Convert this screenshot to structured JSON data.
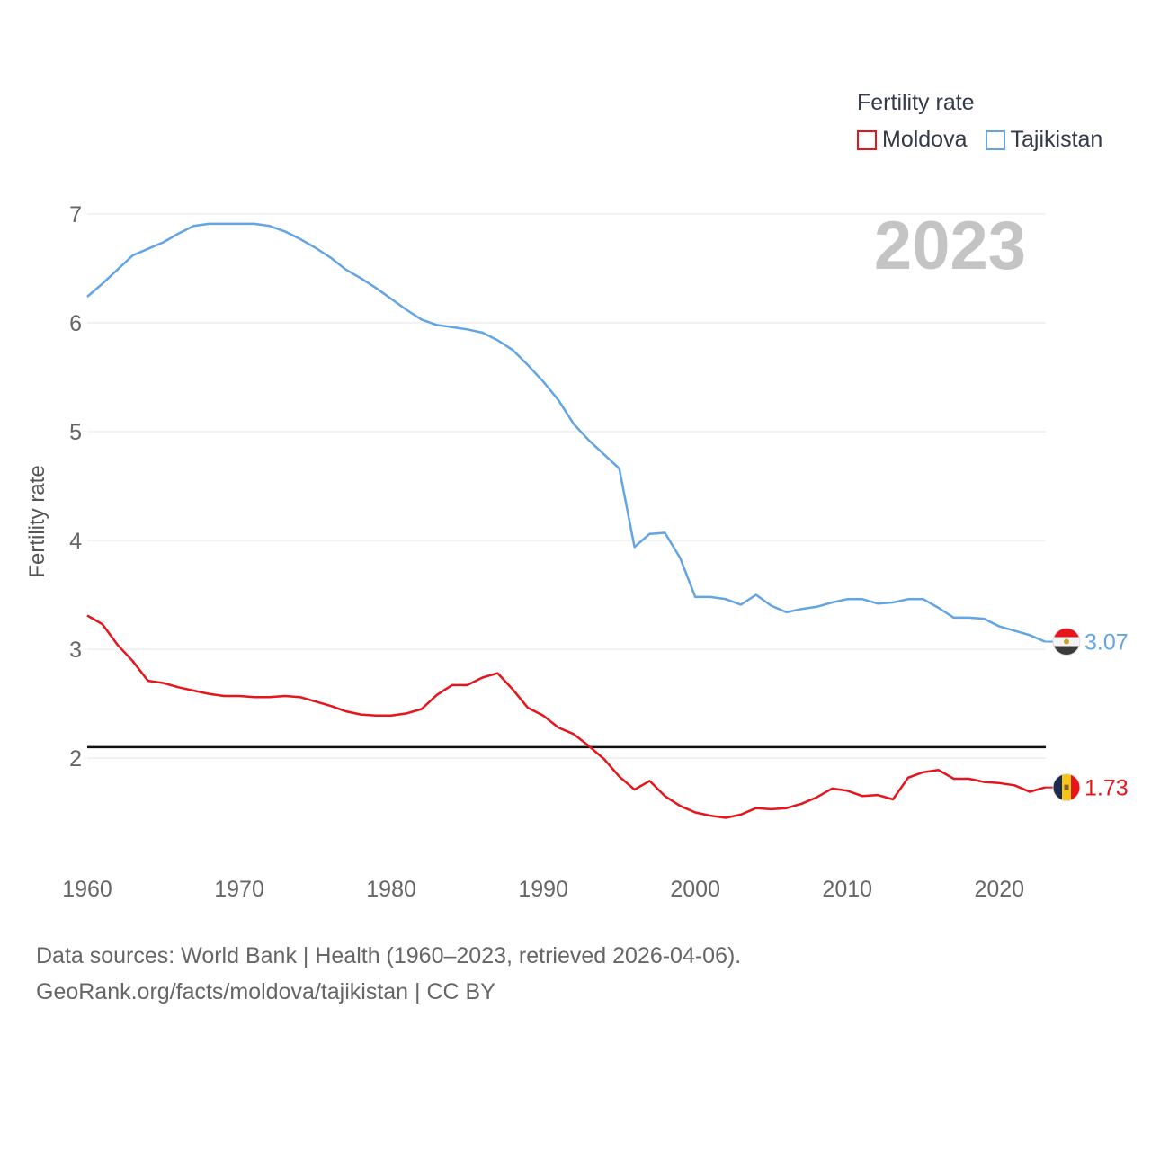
{
  "chart_data": {
    "type": "line",
    "title": "Fertility rate",
    "ylabel": "Fertility rate",
    "xlabel": "",
    "xlim": [
      1960,
      2023
    ],
    "ylim": [
      1.0,
      7.2
    ],
    "x_ticks": [
      1960,
      1970,
      1980,
      1990,
      2000,
      2010,
      2020
    ],
    "y_ticks": [
      2,
      3,
      4,
      5,
      6,
      7
    ],
    "year_label": "2023",
    "reference_line": 2.1,
    "x": [
      1960,
      1961,
      1962,
      1963,
      1964,
      1965,
      1966,
      1967,
      1968,
      1969,
      1970,
      1971,
      1972,
      1973,
      1974,
      1975,
      1976,
      1977,
      1978,
      1979,
      1980,
      1981,
      1982,
      1983,
      1984,
      1985,
      1986,
      1987,
      1988,
      1989,
      1990,
      1991,
      1992,
      1993,
      1994,
      1995,
      1996,
      1997,
      1998,
      1999,
      2000,
      2001,
      2002,
      2003,
      2004,
      2005,
      2006,
      2007,
      2008,
      2009,
      2010,
      2011,
      2012,
      2013,
      2014,
      2015,
      2016,
      2017,
      2018,
      2019,
      2020,
      2021,
      2022,
      2023
    ],
    "series": [
      {
        "name": "Moldova",
        "color": "#e8141b",
        "end_label": "1.73",
        "flag": "moldova-flag-icon",
        "values": [
          3.31,
          3.23,
          3.04,
          2.89,
          2.71,
          2.69,
          2.65,
          2.62,
          2.59,
          2.57,
          2.57,
          2.56,
          2.56,
          2.57,
          2.56,
          2.52,
          2.48,
          2.43,
          2.4,
          2.39,
          2.39,
          2.41,
          2.45,
          2.58,
          2.67,
          2.67,
          2.74,
          2.78,
          2.63,
          2.46,
          2.39,
          2.28,
          2.22,
          2.11,
          1.99,
          1.83,
          1.71,
          1.79,
          1.65,
          1.56,
          1.5,
          1.47,
          1.45,
          1.48,
          1.54,
          1.53,
          1.54,
          1.58,
          1.64,
          1.72,
          1.7,
          1.65,
          1.66,
          1.62,
          1.82,
          1.87,
          1.89,
          1.81,
          1.81,
          1.78,
          1.77,
          1.75,
          1.69,
          1.73
        ]
      },
      {
        "name": "Tajikistan",
        "color": "#63a4e4",
        "end_label": "3.07",
        "flag": "tajikistan-flag-icon",
        "values": [
          6.24,
          6.36,
          6.49,
          6.62,
          6.68,
          6.74,
          6.82,
          6.89,
          6.91,
          6.91,
          6.91,
          6.91,
          6.89,
          6.84,
          6.77,
          6.69,
          6.6,
          6.49,
          6.41,
          6.32,
          6.22,
          6.12,
          6.03,
          5.98,
          5.96,
          5.94,
          5.91,
          5.84,
          5.75,
          5.61,
          5.46,
          5.29,
          5.07,
          4.92,
          4.79,
          4.66,
          3.94,
          4.06,
          4.07,
          3.84,
          3.48,
          3.48,
          3.46,
          3.41,
          3.5,
          3.4,
          3.34,
          3.37,
          3.39,
          3.43,
          3.46,
          3.46,
          3.42,
          3.43,
          3.46,
          3.46,
          3.38,
          3.29,
          3.29,
          3.28,
          3.21,
          3.17,
          3.13,
          3.07
        ]
      }
    ]
  },
  "legend": {
    "title": "Fertility rate",
    "items": [
      {
        "label": "Moldova",
        "color": "#e8141b"
      },
      {
        "label": "Tajikistan",
        "color": "#63a4e4"
      }
    ]
  },
  "source": {
    "line1": "Data sources: World Bank | Health (1960–2023, retrieved 2026-04-06).",
    "line2": "GeoRank.org/facts/moldova/tajikistan | CC BY"
  }
}
